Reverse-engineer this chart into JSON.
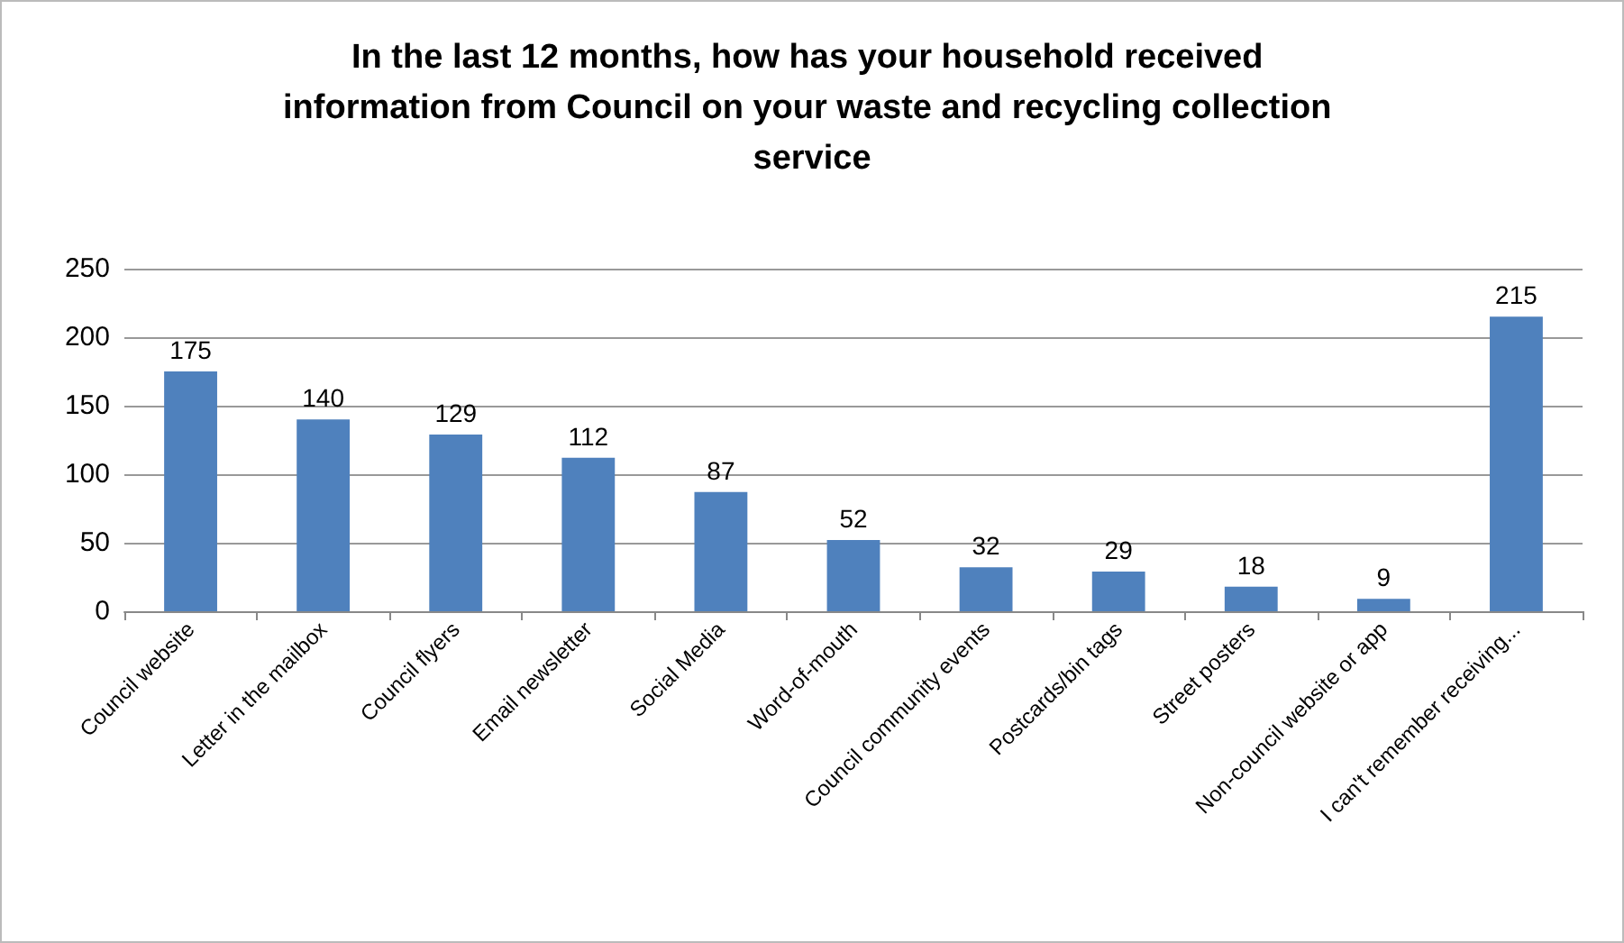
{
  "chart_data": {
    "type": "bar",
    "title": "In the last 12 months, how has your household received information from Council on your waste and recycling collection service",
    "categories": [
      "Council website",
      "Letter in the mailbox",
      "Council flyers",
      "Email newsletter",
      "Social Media",
      "Word-of-mouth",
      "Council community events",
      "Postcards/bin tags",
      "Street posters",
      "Non-council website or app",
      "I can't remember receiving..."
    ],
    "values": [
      175,
      140,
      129,
      112,
      87,
      52,
      32,
      29,
      18,
      9,
      215
    ],
    "color": "#4f81bd",
    "ylim": [
      0,
      250
    ],
    "yticks": [
      0,
      50,
      100,
      150,
      200,
      250
    ],
    "grid": "y",
    "data_labels": true
  }
}
